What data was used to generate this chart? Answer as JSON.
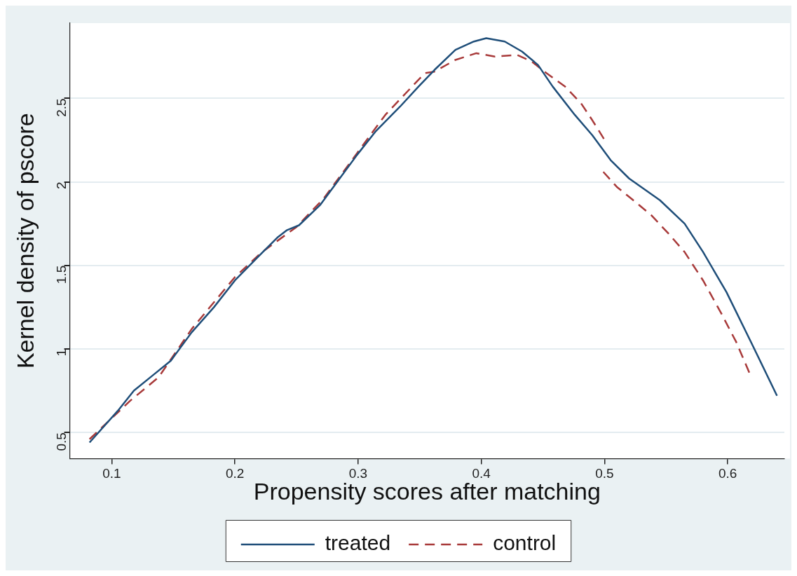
{
  "chart_data": {
    "type": "line",
    "xlabel": "Propensity scores after matching",
    "ylabel": "Kernel density of pscore",
    "xlim": [
      0.066,
      0.646
    ],
    "xticks": [
      0.1,
      0.2,
      0.3,
      0.4,
      0.5,
      0.6
    ],
    "ylim": [
      0.344,
      2.95
    ],
    "yticks": [
      0.5,
      1,
      1.5,
      2,
      2.5
    ],
    "grid": "y",
    "legend": "bottom",
    "marker": "none",
    "series": [
      {
        "name": "treated",
        "color": "#1f4e79",
        "line_style": "solid",
        "x": [
          0.082,
          0.105,
          0.118,
          0.133,
          0.148,
          0.165,
          0.183,
          0.2,
          0.22,
          0.235,
          0.242,
          0.252,
          0.269,
          0.284,
          0.299,
          0.314,
          0.334,
          0.349,
          0.362,
          0.379,
          0.394,
          0.404,
          0.419,
          0.433,
          0.446,
          0.458,
          0.476,
          0.49,
          0.505,
          0.52,
          0.545,
          0.565,
          0.58,
          0.599,
          0.619,
          0.64
        ],
        "values": [
          0.44,
          0.63,
          0.75,
          0.84,
          0.93,
          1.1,
          1.25,
          1.41,
          1.56,
          1.67,
          1.71,
          1.74,
          1.86,
          2.01,
          2.16,
          2.3,
          2.45,
          2.57,
          2.67,
          2.79,
          2.84,
          2.86,
          2.84,
          2.78,
          2.7,
          2.57,
          2.4,
          2.28,
          2.13,
          2.02,
          1.89,
          1.75,
          1.58,
          1.34,
          1.04,
          0.72
        ]
      },
      {
        "name": "control",
        "color": "#a83a3a",
        "line_style": "dashed",
        "x": [
          0.082,
          0.115,
          0.138,
          0.165,
          0.2,
          0.222,
          0.25,
          0.272,
          0.299,
          0.322,
          0.354,
          0.362,
          0.379,
          0.396,
          0.411,
          0.429,
          0.441,
          0.453,
          0.468,
          0.481,
          0.49,
          0.501,
          0.5,
          0.499,
          0.51,
          0.525,
          0.538,
          0.552,
          0.565,
          0.58,
          0.595,
          0.607,
          0.618
        ],
        "values": [
          0.46,
          0.69,
          0.83,
          1.12,
          1.43,
          1.58,
          1.73,
          1.9,
          2.17,
          2.4,
          2.65,
          2.66,
          2.73,
          2.77,
          2.75,
          2.76,
          2.72,
          2.65,
          2.57,
          2.47,
          2.37,
          2.24,
          null,
          2.06,
          1.97,
          1.88,
          1.8,
          1.69,
          1.58,
          1.41,
          1.21,
          1.04,
          0.85
        ]
      }
    ]
  }
}
